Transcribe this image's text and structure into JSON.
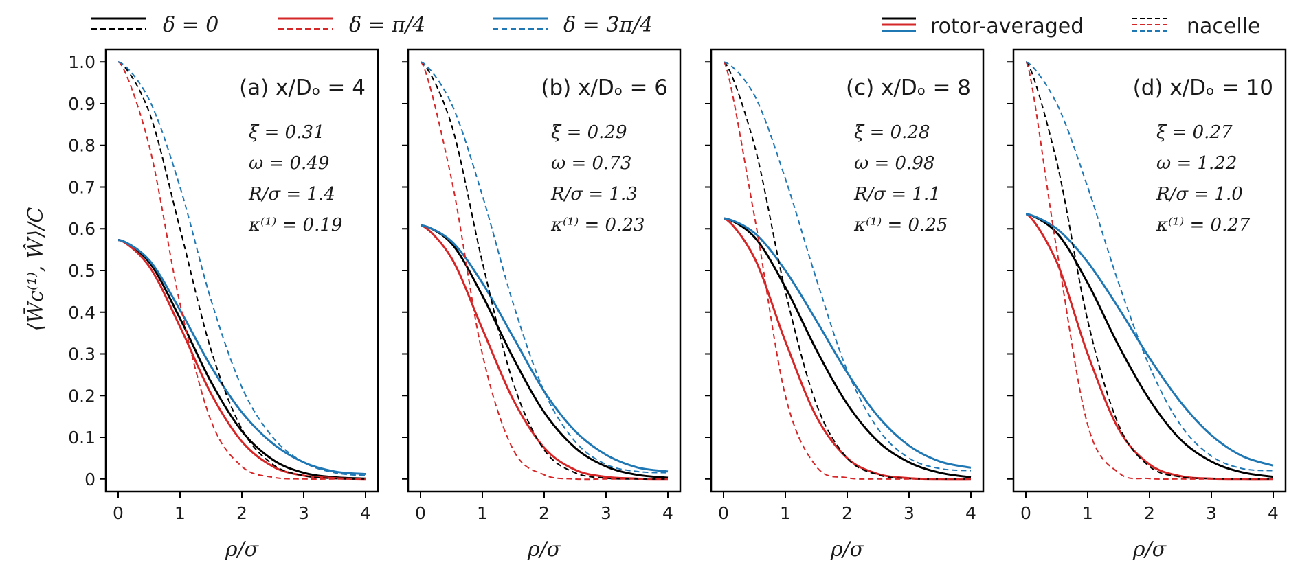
{
  "figure": {
    "ylabel": "⟨W̄c⁽¹⁾, Ŵ⟩/C",
    "legend": {
      "entries": [
        {
          "label": "δ = 0",
          "color": "#000000"
        },
        {
          "label": "δ = π/4",
          "color": "#d62728"
        },
        {
          "label": "δ = 3π/4",
          "color": "#1f77b4"
        }
      ],
      "style_entries": [
        {
          "label": "rotor-averaged",
          "linestyle": "solid"
        },
        {
          "label": "nacelle",
          "linestyle": "dashed"
        }
      ]
    }
  },
  "chart_data": [
    {
      "type": "line",
      "title": "(a) x/Dₒ = 4",
      "params": [
        "ξ = 0.31",
        "ω = 0.49",
        "R/σ = 1.4",
        "κ⁽¹⁾ = 0.19"
      ],
      "xlabel": "ρ/σ",
      "ylabel": "⟨W̄c⁽¹⁾, Ŵ⟩/C",
      "xlim": [
        -0.2,
        4.2
      ],
      "ylim": [
        -0.03,
        1.03
      ],
      "xticks": [
        "0",
        "1",
        "2",
        "3",
        "4"
      ],
      "yticks": [
        "0",
        "0.1",
        "0.2",
        "0.3",
        "0.4",
        "0.5",
        "0.6",
        "0.7",
        "0.8",
        "0.9",
        "1.0"
      ],
      "x": [
        0,
        0.5,
        1,
        1.5,
        2,
        2.5,
        3,
        3.5,
        4
      ],
      "series": [
        {
          "name": "δ = 0 rotor-averaged",
          "color": "#000000",
          "dash": false,
          "values": [
            0.573,
            0.52,
            0.385,
            0.233,
            0.115,
            0.046,
            0.015,
            0.004,
            0.001
          ]
        },
        {
          "name": "δ = π/4 rotor-averaged",
          "color": "#d62728",
          "dash": false,
          "values": [
            0.573,
            0.51,
            0.365,
            0.205,
            0.09,
            0.03,
            0.008,
            0.002,
            0.0
          ]
        },
        {
          "name": "δ = 3π/4 rotor-averaged",
          "color": "#1f77b4",
          "dash": false,
          "values": [
            0.573,
            0.525,
            0.405,
            0.27,
            0.16,
            0.085,
            0.04,
            0.018,
            0.012
          ]
        },
        {
          "name": "δ = 0 nacelle",
          "color": "#000000",
          "dash": true,
          "values": [
            1.0,
            0.88,
            0.6,
            0.31,
            0.12,
            0.035,
            0.008,
            0.001,
            0.0
          ]
        },
        {
          "name": "δ = π/4 nacelle",
          "color": "#d62728",
          "dash": true,
          "values": [
            1.0,
            0.8,
            0.42,
            0.14,
            0.03,
            0.004,
            0.0,
            0.0,
            0.0
          ]
        },
        {
          "name": "δ = 3π/4 nacelle",
          "color": "#1f77b4",
          "dash": true,
          "values": [
            1.0,
            0.91,
            0.7,
            0.43,
            0.22,
            0.1,
            0.04,
            0.015,
            0.008
          ]
        }
      ]
    },
    {
      "type": "line",
      "title": "(b) x/Dₒ = 6",
      "params": [
        "ξ = 0.29",
        "ω = 0.73",
        "R/σ = 1.3",
        "κ⁽¹⁾ = 0.23"
      ],
      "xlabel": "ρ/σ",
      "ylabel": "⟨W̄c⁽¹⁾, Ŵ⟩/C",
      "xlim": [
        -0.2,
        4.2
      ],
      "ylim": [
        -0.03,
        1.03
      ],
      "xticks": [
        "0",
        "1",
        "2",
        "3",
        "4"
      ],
      "yticks": [
        "0",
        "0.1",
        "0.2",
        "0.3",
        "0.4",
        "0.5",
        "0.6",
        "0.7",
        "0.8",
        "0.9",
        "1.0"
      ],
      "x": [
        0,
        0.5,
        1,
        1.5,
        2,
        2.5,
        3,
        3.5,
        4
      ],
      "series": [
        {
          "name": "δ = 0 rotor-averaged",
          "color": "#000000",
          "dash": false,
          "values": [
            0.608,
            0.565,
            0.44,
            0.29,
            0.16,
            0.075,
            0.03,
            0.01,
            0.003
          ]
        },
        {
          "name": "δ = π/4 rotor-averaged",
          "color": "#d62728",
          "dash": false,
          "values": [
            0.608,
            0.53,
            0.36,
            0.19,
            0.075,
            0.022,
            0.005,
            0.001,
            0.0
          ]
        },
        {
          "name": "δ = 3π/4 rotor-averaged",
          "color": "#1f77b4",
          "dash": false,
          "values": [
            0.608,
            0.57,
            0.47,
            0.34,
            0.21,
            0.115,
            0.058,
            0.028,
            0.018
          ]
        },
        {
          "name": "δ = 0 nacelle",
          "color": "#000000",
          "dash": true,
          "values": [
            1.0,
            0.85,
            0.52,
            0.23,
            0.07,
            0.015,
            0.002,
            0.0,
            0.0
          ]
        },
        {
          "name": "δ = π/4 nacelle",
          "color": "#d62728",
          "dash": true,
          "values": [
            1.0,
            0.72,
            0.3,
            0.07,
            0.01,
            0.0,
            0.0,
            0.0,
            0.0
          ]
        },
        {
          "name": "δ = 3π/4 nacelle",
          "color": "#1f77b4",
          "dash": true,
          "values": [
            1.0,
            0.9,
            0.68,
            0.42,
            0.21,
            0.09,
            0.035,
            0.018,
            0.015
          ]
        }
      ]
    },
    {
      "type": "line",
      "title": "(c) x/Dₒ = 8",
      "params": [
        "ξ = 0.28",
        "ω = 0.98",
        "R/σ = 1.1",
        "κ⁽¹⁾ = 0.25"
      ],
      "xlabel": "ρ/σ",
      "ylabel": "⟨W̄c⁽¹⁾, Ŵ⟩/C",
      "xlim": [
        -0.2,
        4.2
      ],
      "ylim": [
        -0.03,
        1.03
      ],
      "xticks": [
        "0",
        "1",
        "2",
        "3",
        "4"
      ],
      "yticks": [
        "0",
        "0.1",
        "0.2",
        "0.3",
        "0.4",
        "0.5",
        "0.6",
        "0.7",
        "0.8",
        "0.9",
        "1.0"
      ],
      "x": [
        0,
        0.5,
        1,
        1.5,
        2,
        2.5,
        3,
        3.5,
        4
      ],
      "series": [
        {
          "name": "δ = 0 rotor-averaged",
          "color": "#000000",
          "dash": false,
          "values": [
            0.625,
            0.58,
            0.46,
            0.31,
            0.18,
            0.09,
            0.04,
            0.015,
            0.004
          ]
        },
        {
          "name": "δ = π/4 rotor-averaged",
          "color": "#d62728",
          "dash": false,
          "values": [
            0.625,
            0.53,
            0.33,
            0.15,
            0.05,
            0.012,
            0.002,
            0.0,
            0.0
          ]
        },
        {
          "name": "δ = 3π/4 rotor-averaged",
          "color": "#1f77b4",
          "dash": false,
          "values": [
            0.625,
            0.59,
            0.5,
            0.38,
            0.255,
            0.15,
            0.08,
            0.042,
            0.027
          ]
        },
        {
          "name": "δ = 0 nacelle",
          "color": "#000000",
          "dash": true,
          "values": [
            1.0,
            0.8,
            0.45,
            0.18,
            0.05,
            0.01,
            0.001,
            0.0,
            0.0
          ]
        },
        {
          "name": "δ = π/4 nacelle",
          "color": "#d62728",
          "dash": true,
          "values": [
            1.0,
            0.63,
            0.2,
            0.03,
            0.003,
            0.0,
            0.0,
            0.0,
            0.0
          ]
        },
        {
          "name": "δ = 3π/4 nacelle",
          "color": "#1f77b4",
          "dash": true,
          "values": [
            1.0,
            0.92,
            0.72,
            0.48,
            0.26,
            0.12,
            0.05,
            0.025,
            0.02
          ]
        }
      ]
    },
    {
      "type": "line",
      "title": "(d) x/Dₒ = 10",
      "params": [
        "ξ = 0.27",
        "ω = 1.22",
        "R/σ = 1.0",
        "κ⁽¹⁾ = 0.27"
      ],
      "xlabel": "ρ/σ",
      "ylabel": "⟨W̄c⁽¹⁾, Ŵ⟩/C",
      "xlim": [
        -0.2,
        4.2
      ],
      "ylim": [
        -0.03,
        1.03
      ],
      "xticks": [
        "0",
        "1",
        "2",
        "3",
        "4"
      ],
      "yticks": [
        "0",
        "0.1",
        "0.2",
        "0.3",
        "0.4",
        "0.5",
        "0.6",
        "0.7",
        "0.8",
        "0.9",
        "1.0"
      ],
      "x": [
        0,
        0.5,
        1,
        1.5,
        2,
        2.5,
        3,
        3.5,
        4
      ],
      "series": [
        {
          "name": "δ = 0 rotor-averaged",
          "color": "#000000",
          "dash": false,
          "values": [
            0.635,
            0.59,
            0.47,
            0.32,
            0.19,
            0.095,
            0.042,
            0.016,
            0.005
          ]
        },
        {
          "name": "δ = π/4 rotor-averaged",
          "color": "#d62728",
          "dash": false,
          "values": [
            0.635,
            0.52,
            0.3,
            0.12,
            0.035,
            0.007,
            0.001,
            0.0,
            0.0
          ]
        },
        {
          "name": "δ = 3π/4 rotor-averaged",
          "color": "#1f77b4",
          "dash": false,
          "values": [
            0.635,
            0.6,
            0.52,
            0.41,
            0.29,
            0.185,
            0.105,
            0.055,
            0.032
          ]
        },
        {
          "name": "δ = 0 nacelle",
          "color": "#000000",
          "dash": true,
          "values": [
            1.0,
            0.76,
            0.38,
            0.13,
            0.03,
            0.005,
            0.001,
            0.0,
            0.0
          ]
        },
        {
          "name": "δ = π/4 nacelle",
          "color": "#d62728",
          "dash": true,
          "values": [
            1.0,
            0.55,
            0.13,
            0.015,
            0.001,
            0.0,
            0.0,
            0.0,
            0.0
          ]
        },
        {
          "name": "δ = 3π/4 nacelle",
          "color": "#1f77b4",
          "dash": true,
          "values": [
            1.0,
            0.9,
            0.7,
            0.47,
            0.27,
            0.13,
            0.055,
            0.025,
            0.02
          ]
        }
      ]
    }
  ]
}
